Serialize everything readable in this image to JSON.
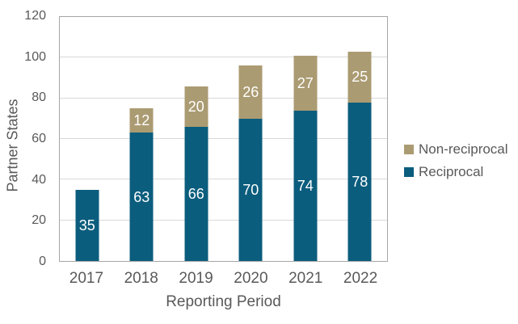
{
  "chart_data": {
    "type": "bar",
    "stacked": true,
    "title": "",
    "categories": [
      "2017",
      "2018",
      "2019",
      "2020",
      "2021",
      "2022"
    ],
    "series": [
      {
        "name": "Reciprocal",
        "color": "#0b5d7d",
        "values": [
          35,
          63,
          66,
          70,
          74,
          78
        ]
      },
      {
        "name": "Non-reciprocal",
        "color": "#ab9b72",
        "values": [
          0,
          12,
          20,
          26,
          27,
          25
        ]
      }
    ],
    "totals": [
      35,
      75,
      86,
      96,
      101,
      103
    ],
    "xlabel": "Reporting Period",
    "ylabel": "Partner States",
    "ylim": [
      0,
      120
    ],
    "yticks": [
      0,
      20,
      40,
      60,
      80,
      100,
      120
    ],
    "grid": "horizontal",
    "legend_position": "right",
    "legend_order": [
      "Non-reciprocal",
      "Reciprocal"
    ],
    "bar_label_color": "#ffffff"
  },
  "colors": {
    "axis_text": "#595959",
    "gridline": "#d9d9d9",
    "plot_border": "#a6a6a6",
    "background": "#ffffff"
  }
}
